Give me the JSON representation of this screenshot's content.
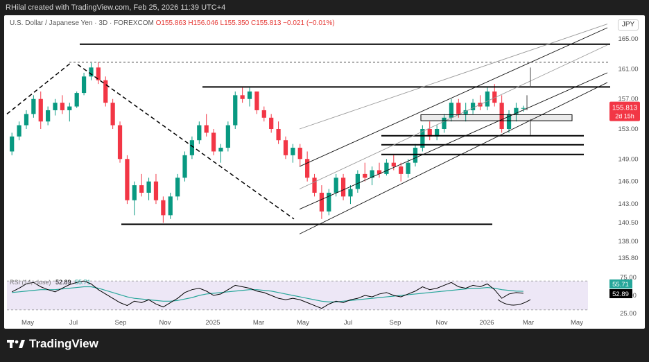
{
  "header": {
    "created_by": "RHilal created with TradingView.com, Feb 25, 2026 11:39 UTC+4"
  },
  "symbol": {
    "name": "U.S. Dollar / Japanese Yen · 3D · FOREXCOM",
    "open": "O155.863",
    "high": "H156.046",
    "low": "L155.350",
    "close": "C155.813",
    "change": "−0.021 (−0.01%)"
  },
  "currency": "JPY",
  "price_tag": {
    "value": "155.813",
    "countdown": "2d 15h"
  },
  "rsi_tags": {
    "ma": "55.71",
    "rsi": "52.89"
  },
  "rsi_header": {
    "name": "RSI (14, close)",
    "rsi": "52.89",
    "ma": "55.71"
  },
  "brand": "TradingView",
  "colors": {
    "up": "#089981",
    "down": "#f23645",
    "rsi_line": "#000000",
    "rsi_ma": "#26a69a",
    "rsi_band": "#ede7f6"
  },
  "chart_data": [
    {
      "type": "candlestick",
      "x_ticks": [
        "May",
        "Jul",
        "Sep",
        "Nov",
        "2025",
        "Mar",
        "May",
        "Jul",
        "Sep",
        "Nov",
        "2026",
        "Mar",
        "May"
      ],
      "y_ticks": [
        165,
        161,
        157,
        153,
        149,
        146,
        143,
        140.5,
        138,
        135.8
      ],
      "y_tick_labels": [
        "165.00",
        "161.00",
        "157.00",
        "153.00",
        "149.00",
        "146.00",
        "143.00",
        "140.50",
        "138.00",
        "135.80"
      ],
      "ylim": [
        135.8,
        166.5
      ],
      "candles": [
        [
          150.0,
          152.5,
          149.5,
          152.0
        ],
        [
          152.0,
          154.0,
          151.5,
          153.5
        ],
        [
          153.5,
          155.5,
          153,
          155
        ],
        [
          155,
          157.5,
          154.5,
          157
        ],
        [
          157,
          158,
          153,
          154
        ],
        [
          154,
          156,
          153.5,
          155.5
        ],
        [
          155.5,
          157,
          154.8,
          156.5
        ],
        [
          156.5,
          157.5,
          155,
          155.5
        ],
        [
          155.5,
          156.5,
          154,
          156
        ],
        [
          156,
          158,
          155.8,
          157.8
        ],
        [
          157.8,
          160.5,
          157.5,
          160
        ],
        [
          160,
          161.8,
          159.5,
          161.2
        ],
        [
          161.2,
          161.9,
          159,
          159.5
        ],
        [
          159.5,
          160,
          156,
          156.5
        ],
        [
          156.5,
          157,
          153,
          153.5
        ],
        [
          153.5,
          154,
          148.5,
          149
        ],
        [
          149,
          149.5,
          143,
          143.5
        ],
        [
          143.5,
          146,
          141.5,
          145.5
        ],
        [
          145.5,
          147,
          144,
          144.5
        ],
        [
          144.5,
          146.5,
          143.5,
          146
        ],
        [
          146,
          147,
          143,
          143.5
        ],
        [
          143.5,
          144,
          140.5,
          141.5
        ],
        [
          141.5,
          144.5,
          141,
          144
        ],
        [
          144,
          147,
          143.5,
          146.5
        ],
        [
          146.5,
          150,
          146,
          149.5
        ],
        [
          149.5,
          152,
          149,
          151.5
        ],
        [
          151.5,
          154,
          151,
          153.5
        ],
        [
          153.5,
          155,
          152,
          152.5
        ],
        [
          152.5,
          153,
          149.5,
          150
        ],
        [
          150,
          151,
          148.5,
          150.5
        ],
        [
          150.5,
          154,
          150,
          153.5
        ],
        [
          153.5,
          158,
          153,
          157.5
        ],
        [
          157.5,
          158.5,
          156.5,
          157
        ],
        [
          157,
          158.5,
          156,
          158
        ],
        [
          158,
          158,
          155,
          155.5
        ],
        [
          155.5,
          156,
          154,
          154.5
        ],
        [
          154.5,
          155,
          152.5,
          153
        ],
        [
          153,
          154,
          151,
          151.5
        ],
        [
          151.5,
          152,
          149,
          149.5
        ],
        [
          149.5,
          151,
          148.5,
          150.5
        ],
        [
          150.5,
          151,
          148,
          149
        ],
        [
          149,
          150,
          146,
          146.5
        ],
        [
          146.5,
          147,
          144,
          144.5
        ],
        [
          144.5,
          145.5,
          141,
          142
        ],
        [
          142,
          145,
          141.5,
          144.5
        ],
        [
          144.5,
          147,
          144,
          146.5
        ],
        [
          146.5,
          147,
          143.5,
          144
        ],
        [
          144,
          145.5,
          143,
          145
        ],
        [
          145,
          147.5,
          144.5,
          147
        ],
        [
          147,
          148.5,
          146,
          146.5
        ],
        [
          146.5,
          148,
          145.5,
          147.5
        ],
        [
          147.5,
          148.5,
          146.5,
          147
        ],
        [
          147,
          149,
          146.8,
          148.5
        ],
        [
          148.5,
          149.5,
          147.5,
          148
        ],
        [
          148,
          148.5,
          146,
          147
        ],
        [
          147,
          149,
          146.5,
          148.5
        ],
        [
          148.5,
          151,
          148,
          150.5
        ],
        [
          150.5,
          153.5,
          150,
          153
        ],
        [
          153,
          154,
          151.5,
          152
        ],
        [
          152,
          153.5,
          151.5,
          153
        ],
        [
          153,
          155,
          152.5,
          154.5
        ],
        [
          154.5,
          157,
          154,
          156.5
        ],
        [
          156.5,
          157,
          154.5,
          155
        ],
        [
          155,
          156.5,
          154,
          155.5
        ],
        [
          155.5,
          157,
          155,
          156.5
        ],
        [
          156.5,
          157.5,
          155.5,
          156
        ],
        [
          156,
          158.5,
          155.5,
          158
        ],
        [
          158,
          159,
          156,
          156.5
        ],
        [
          156.5,
          157.5,
          152.5,
          153
        ],
        [
          153,
          155.5,
          152.5,
          155
        ],
        [
          155,
          156.5,
          154,
          155.8
        ],
        [
          155.8,
          156.1,
          155.3,
          155.8
        ]
      ],
      "rsi": [
        55,
        60,
        66,
        68,
        62,
        58,
        55,
        60,
        65,
        68,
        70,
        66,
        58,
        52,
        46,
        40,
        36,
        42,
        40,
        44,
        38,
        34,
        40,
        46,
        54,
        58,
        60,
        56,
        50,
        52,
        58,
        64,
        62,
        60,
        56,
        54,
        50,
        46,
        44,
        46,
        44,
        40,
        36,
        32,
        38,
        42,
        40,
        44,
        46,
        50,
        48,
        52,
        54,
        50,
        48,
        52,
        56,
        62,
        58,
        60,
        64,
        68,
        62,
        60,
        64,
        62,
        66,
        58,
        46,
        52,
        54,
        53
      ],
      "rsi_ma": [
        54,
        55,
        56,
        57,
        58,
        58,
        58,
        59,
        60,
        61,
        62,
        62,
        60,
        57,
        54,
        51,
        48,
        46,
        45,
        44,
        43,
        42,
        42,
        43,
        45,
        47,
        50,
        52,
        53,
        54,
        55,
        56,
        57,
        58,
        58,
        57,
        56,
        54,
        52,
        50,
        48,
        46,
        44,
        42,
        41,
        41,
        42,
        43,
        44,
        45,
        46,
        47,
        48,
        49,
        50,
        51,
        52,
        53,
        54,
        55,
        56,
        57,
        58,
        59,
        60,
        60,
        61,
        60,
        58,
        57,
        56,
        55.7
      ]
    }
  ]
}
